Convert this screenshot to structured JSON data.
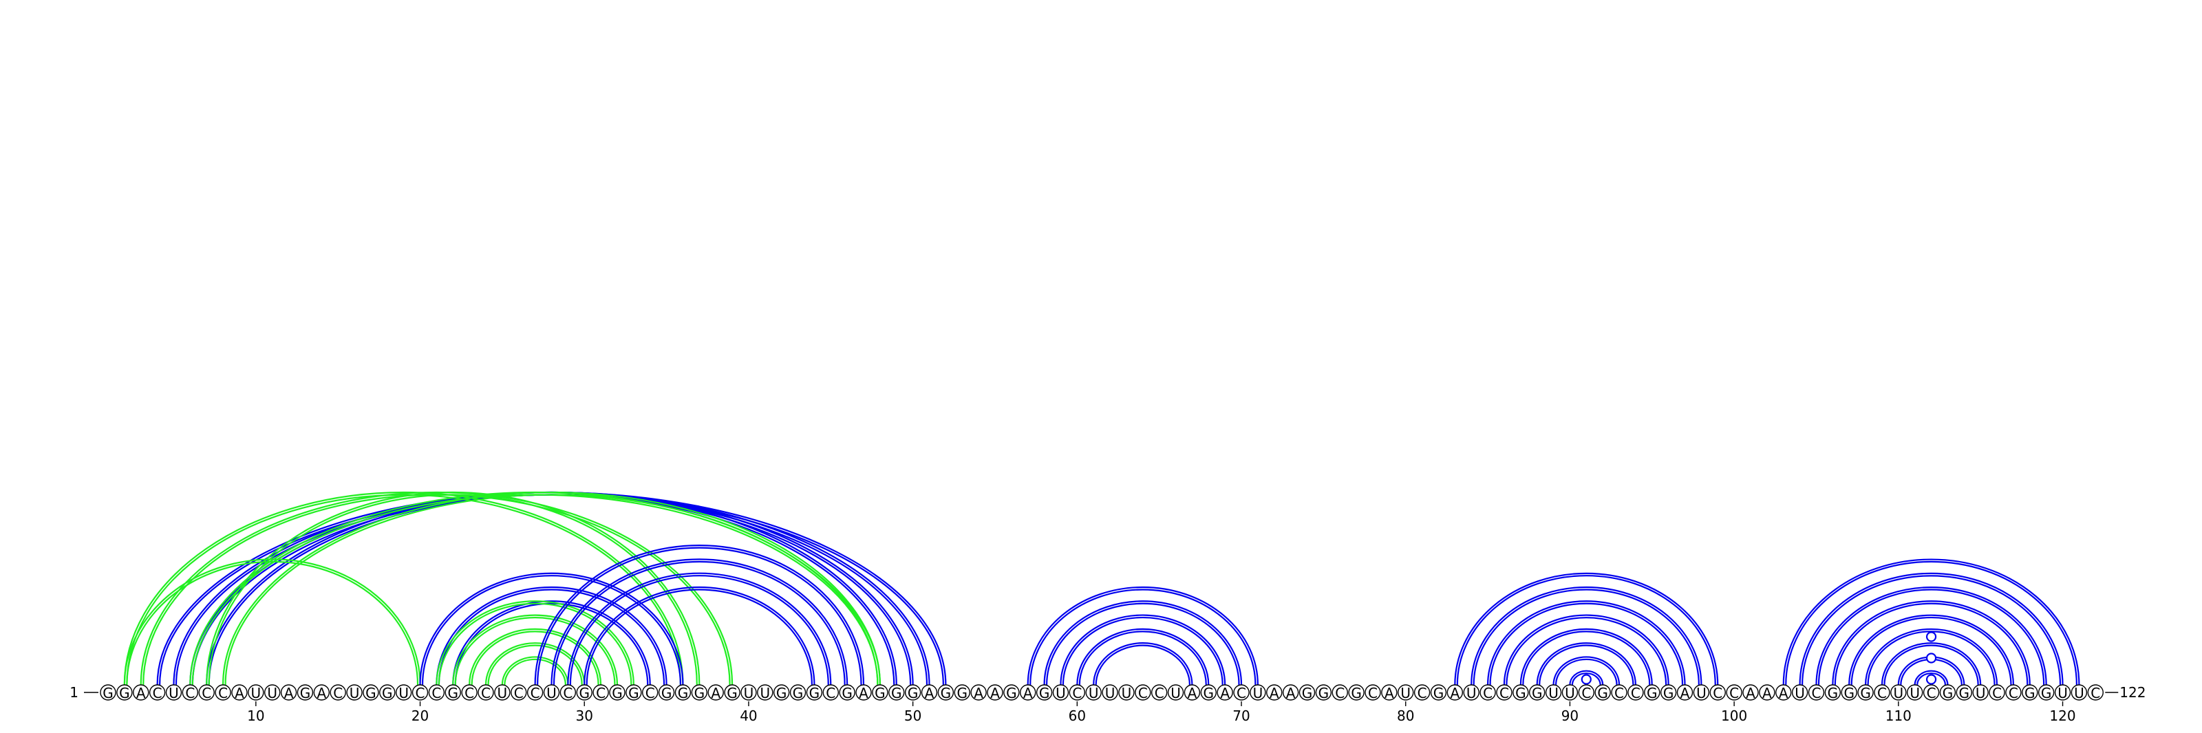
{
  "sequence": "GGACUCCCAUUAGACUGGUCCGCCUCCUCGCGGCGGGAGUUGGGCGAGGGAGGAAGAGUCUUUCCUAGACUAAGGCGCAUCGAUCCGGUUCGCCGGAUCCAAAUCGGGCUUCGGUCCGGUUC",
  "start_label": "1",
  "end_label": "122",
  "ticks": [
    10,
    20,
    30,
    40,
    50,
    60,
    70,
    80,
    90,
    100,
    110,
    120
  ],
  "colors": {
    "blue": "#0000ee",
    "green": "#22ee22",
    "outline": "#000000"
  },
  "arcs": [
    {
      "i": 4,
      "j": 52,
      "color": "blue"
    },
    {
      "i": 5,
      "j": 51,
      "color": "blue"
    },
    {
      "i": 6,
      "j": 50,
      "color": "blue"
    },
    {
      "i": 7,
      "j": 49,
      "color": "blue"
    },
    {
      "i": 2,
      "j": 36,
      "color": "green"
    },
    {
      "i": 3,
      "j": 39,
      "color": "green"
    },
    {
      "i": 6,
      "j": 48,
      "color": "green"
    },
    {
      "i": 7,
      "j": 37,
      "color": "green"
    },
    {
      "i": 8,
      "j": 48,
      "color": "green"
    },
    {
      "i": 2,
      "j": 20,
      "color": "green"
    },
    {
      "i": 20,
      "j": 36,
      "color": "blue"
    },
    {
      "i": 21,
      "j": 35,
      "color": "blue"
    },
    {
      "i": 22,
      "j": 34,
      "color": "blue"
    },
    {
      "i": 21,
      "j": 33,
      "color": "green"
    },
    {
      "i": 22,
      "j": 32,
      "color": "green"
    },
    {
      "i": 23,
      "j": 31,
      "color": "green"
    },
    {
      "i": 24,
      "j": 30,
      "color": "green"
    },
    {
      "i": 25,
      "j": 29,
      "color": "green"
    },
    {
      "i": 27,
      "j": 47,
      "color": "blue"
    },
    {
      "i": 28,
      "j": 46,
      "color": "blue"
    },
    {
      "i": 29,
      "j": 45,
      "color": "blue"
    },
    {
      "i": 30,
      "j": 44,
      "color": "blue"
    },
    {
      "i": 57,
      "j": 71,
      "color": "blue"
    },
    {
      "i": 58,
      "j": 70,
      "color": "blue"
    },
    {
      "i": 59,
      "j": 69,
      "color": "blue"
    },
    {
      "i": 60,
      "j": 68,
      "color": "blue"
    },
    {
      "i": 61,
      "j": 67,
      "color": "blue"
    },
    {
      "i": 83,
      "j": 99,
      "color": "blue"
    },
    {
      "i": 84,
      "j": 98,
      "color": "blue"
    },
    {
      "i": 85,
      "j": 97,
      "color": "blue"
    },
    {
      "i": 86,
      "j": 96,
      "color": "blue"
    },
    {
      "i": 87,
      "j": 95,
      "color": "blue"
    },
    {
      "i": 88,
      "j": 94,
      "color": "blue"
    },
    {
      "i": 89,
      "j": 93,
      "color": "blue"
    },
    {
      "i": 90,
      "j": 92,
      "color": "blue"
    },
    {
      "i": 103,
      "j": 121,
      "color": "blue"
    },
    {
      "i": 104,
      "j": 120,
      "color": "blue"
    },
    {
      "i": 105,
      "j": 119,
      "color": "blue"
    },
    {
      "i": 106,
      "j": 118,
      "color": "blue"
    },
    {
      "i": 107,
      "j": 117,
      "color": "blue"
    },
    {
      "i": 108,
      "j": 116,
      "color": "blue"
    },
    {
      "i": 109,
      "j": 115,
      "color": "blue"
    },
    {
      "i": 110,
      "j": 114,
      "color": "blue"
    },
    {
      "i": 111,
      "j": 113,
      "color": "blue"
    }
  ],
  "markers": [
    {
      "pos": 91,
      "color": "blue",
      "level": 1
    },
    {
      "pos": 112,
      "color": "blue",
      "level": 1
    },
    {
      "pos": 112,
      "color": "blue",
      "level": 2
    },
    {
      "pos": 112,
      "color": "blue",
      "level": 3
    }
  ]
}
